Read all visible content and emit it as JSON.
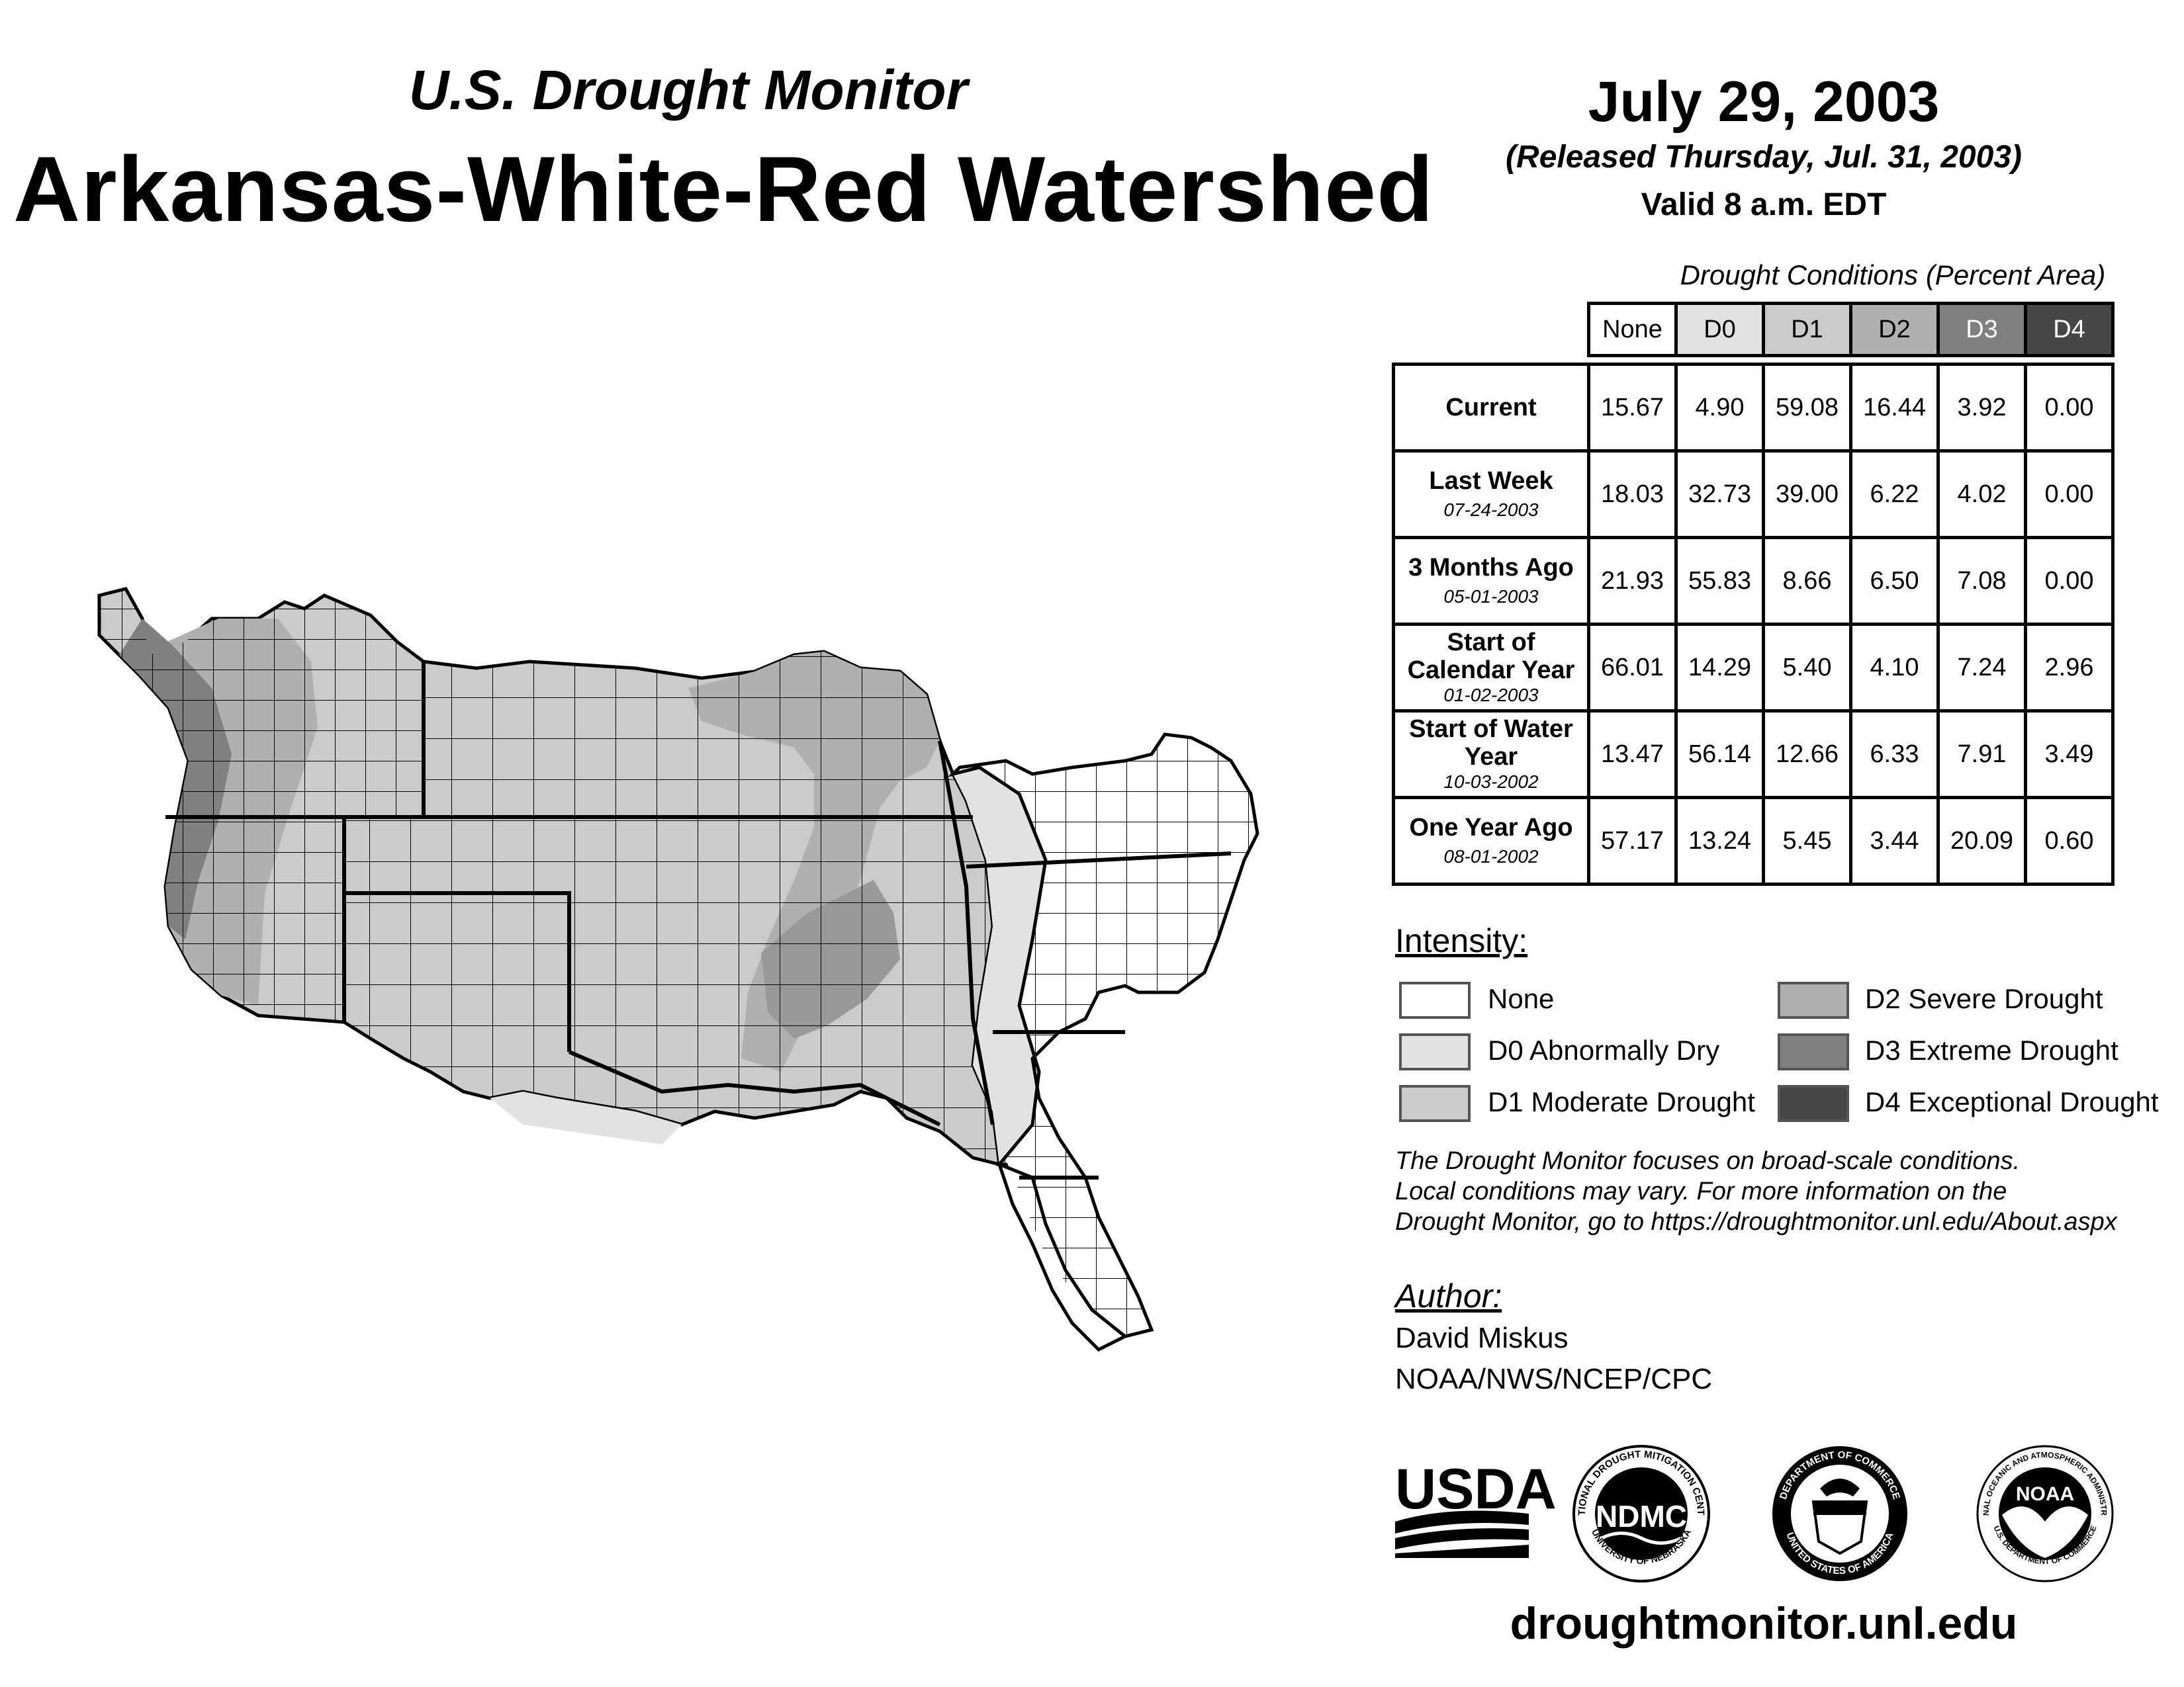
{
  "header": {
    "subtitle": "U.S. Drought Monitor",
    "title": "Arkansas-White-Red Watershed",
    "date": "July 29, 2003",
    "released": "(Released Thursday, Jul. 31, 2003)",
    "valid": "Valid 8 a.m. EDT"
  },
  "table": {
    "caption": "Drought Conditions (Percent Area)",
    "columns": [
      "None",
      "D0",
      "D1",
      "D2",
      "D3",
      "D4"
    ],
    "column_colors": [
      "#ffffff",
      "#e2e2e2",
      "#cbcbcb",
      "#b0b0b0",
      "#808080",
      "#474747"
    ],
    "rows": [
      {
        "label": "Current",
        "date": "",
        "values": [
          "15.67",
          "4.90",
          "59.08",
          "16.44",
          "3.92",
          "0.00"
        ]
      },
      {
        "label": "Last Week",
        "date": "07-24-2003",
        "values": [
          "18.03",
          "32.73",
          "39.00",
          "6.22",
          "4.02",
          "0.00"
        ]
      },
      {
        "label": "3 Months Ago",
        "date": "05-01-2003",
        "values": [
          "21.93",
          "55.83",
          "8.66",
          "6.50",
          "7.08",
          "0.00"
        ]
      },
      {
        "label": "Start of Calendar Year",
        "date": "01-02-2003",
        "values": [
          "66.01",
          "14.29",
          "5.40",
          "4.10",
          "7.24",
          "2.96"
        ]
      },
      {
        "label": "Start of Water Year",
        "date": "10-03-2002",
        "values": [
          "13.47",
          "56.14",
          "12.66",
          "6.33",
          "7.91",
          "3.49"
        ]
      },
      {
        "label": "One Year Ago",
        "date": "08-01-2002",
        "values": [
          "57.17",
          "13.24",
          "5.45",
          "3.44",
          "20.09",
          "0.60"
        ]
      }
    ]
  },
  "legend": {
    "heading": "Intensity:",
    "items": [
      {
        "label": "None",
        "color": "#ffffff"
      },
      {
        "label": "D0 Abnormally Dry",
        "color": "#e2e2e2"
      },
      {
        "label": "D1 Moderate Drought",
        "color": "#cbcbcb"
      },
      {
        "label": "D2 Severe Drought",
        "color": "#b0b0b0"
      },
      {
        "label": "D3 Extreme Drought",
        "color": "#808080"
      },
      {
        "label": "D4 Exceptional Drought",
        "color": "#474747"
      }
    ]
  },
  "note": {
    "line1": "The Drought Monitor focuses on broad-scale conditions.",
    "line2": "Local conditions may vary. For more information on the",
    "line3": "Drought Monitor, go to https://droughtmonitor.unl.edu/About.aspx"
  },
  "author": {
    "heading": "Author:",
    "name": "David Miskus",
    "org": "NOAA/NWS/NCEP/CPC"
  },
  "logos": {
    "usda": "USDA",
    "ndmc": "NDMC",
    "ndmc_ring_top": "NATIONAL DROUGHT MITIGATION CENTER",
    "ndmc_ring_bottom": "UNIVERSITY OF NEBRASKA",
    "doc_ring_top": "DEPARTMENT OF COMMERCE",
    "doc_ring_bottom": "UNITED STATES OF AMERICA",
    "noaa": "NOAA",
    "noaa_ring": "NATIONAL OCEANIC AND ATMOSPHERIC ADMINISTRATION",
    "noaa_ring_bottom": "U.S. DEPARTMENT OF COMMERCE"
  },
  "footer": {
    "url": "droughtmonitor.unl.edu"
  }
}
